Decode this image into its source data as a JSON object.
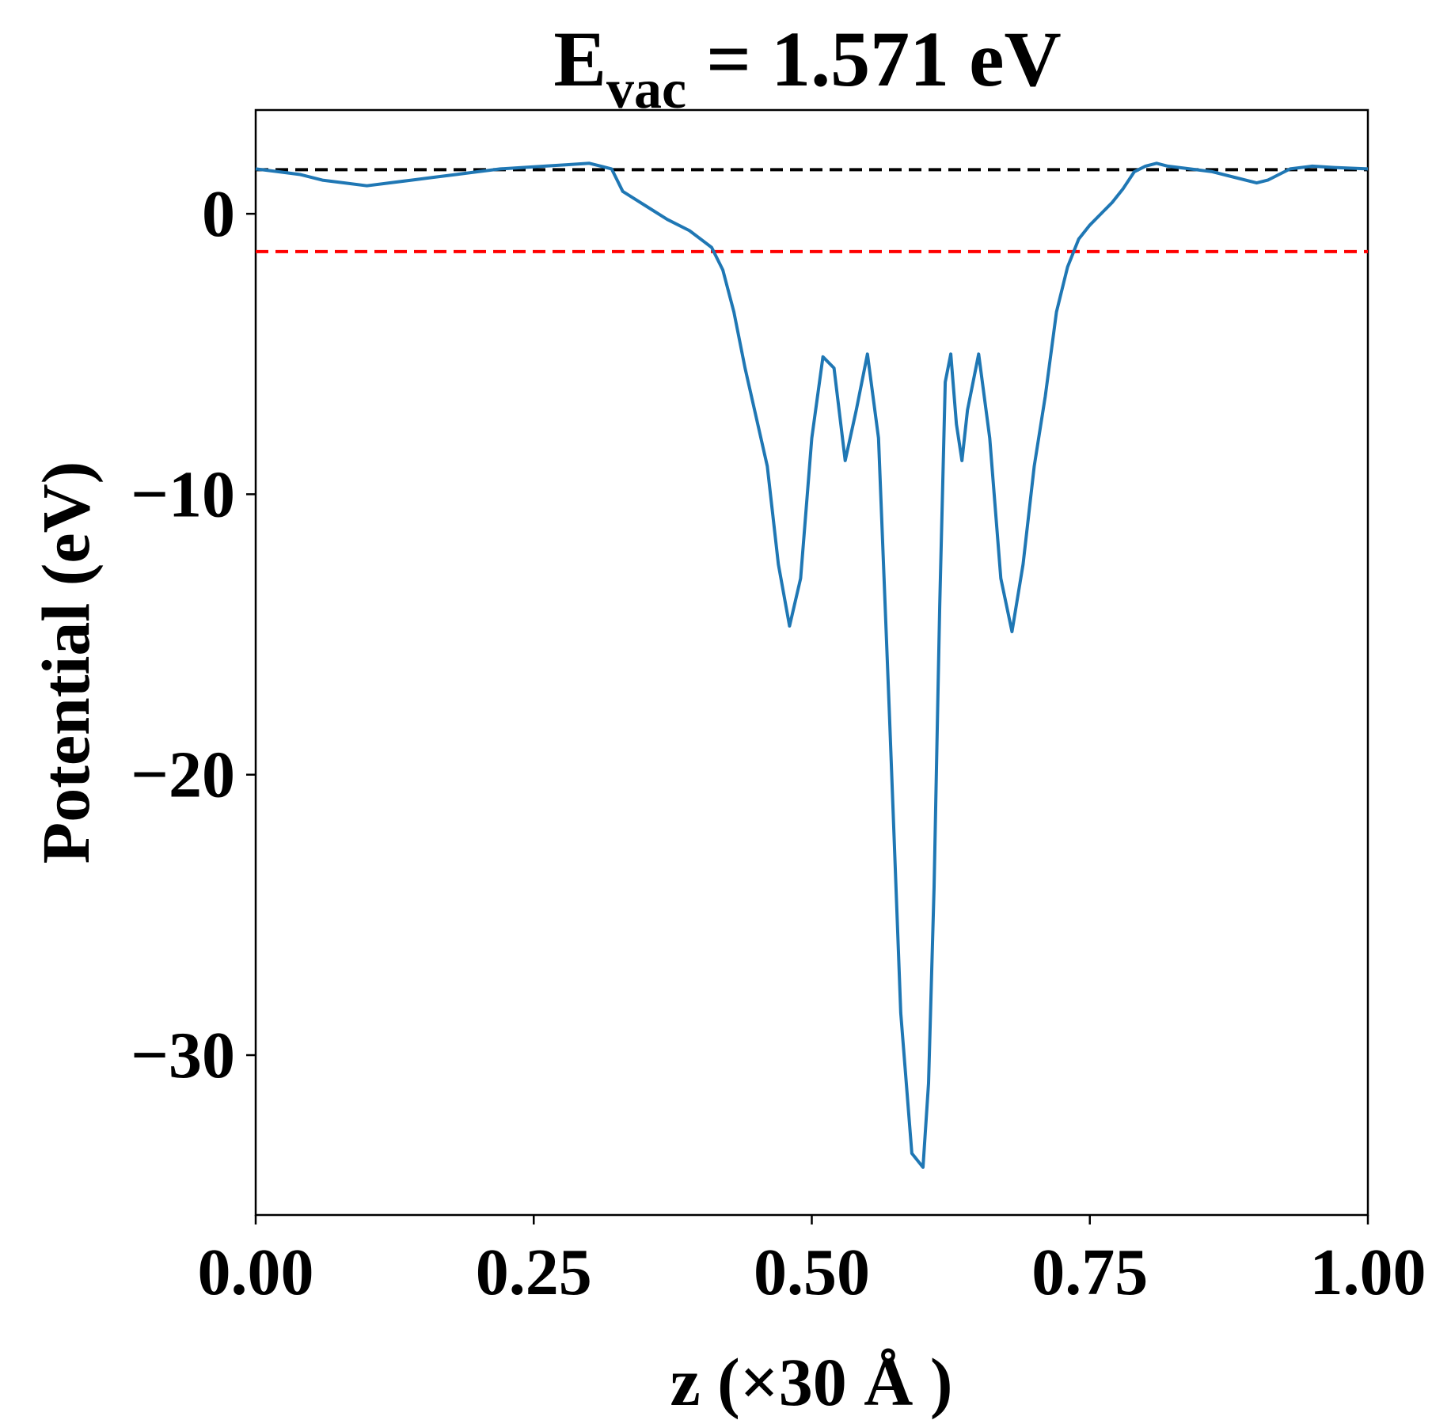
{
  "chart_data": {
    "type": "line",
    "title": {
      "main": "E",
      "subscript": "vac",
      "rest": " = 1.571 eV"
    },
    "xlabel": "z (×30 Å )",
    "ylabel": "Potential (eV)",
    "xlim": [
      0.0,
      1.0
    ],
    "ylim": [
      -35.7,
      3.7
    ],
    "xticks": [
      0.0,
      0.25,
      0.5,
      0.75,
      1.0
    ],
    "xtick_labels": [
      "0.00",
      "0.25",
      "0.50",
      "0.75",
      "1.00"
    ],
    "yticks": [
      0,
      -10,
      -20,
      -30
    ],
    "ytick_labels": [
      "0",
      "−10",
      "−20",
      "−30"
    ],
    "grid": false,
    "legend": false,
    "hlines": [
      {
        "name": "vacuum-level",
        "y": 1.571,
        "color": "#000000",
        "style": "dashed"
      },
      {
        "name": "fermi-level",
        "y": -1.35,
        "color": "#ff0000",
        "style": "dashed"
      }
    ],
    "series": [
      {
        "color": "#1f77b4",
        "x": [
          0.0,
          0.02,
          0.04,
          0.06,
          0.08,
          0.1,
          0.12,
          0.14,
          0.16,
          0.18,
          0.2,
          0.22,
          0.24,
          0.26,
          0.28,
          0.3,
          0.32,
          0.33,
          0.35,
          0.37,
          0.39,
          0.41,
          0.42,
          0.43,
          0.44,
          0.46,
          0.47,
          0.48,
          0.49,
          0.5,
          0.51,
          0.52,
          0.53,
          0.54,
          0.55,
          0.56,
          0.57,
          0.58,
          0.59,
          0.6,
          0.605,
          0.61,
          0.615,
          0.62,
          0.625,
          0.63,
          0.635,
          0.64,
          0.65,
          0.66,
          0.67,
          0.68,
          0.69,
          0.7,
          0.71,
          0.72,
          0.73,
          0.74,
          0.75,
          0.76,
          0.77,
          0.78,
          0.79,
          0.8,
          0.81,
          0.82,
          0.84,
          0.86,
          0.88,
          0.9,
          0.91,
          0.92,
          0.93,
          0.95,
          0.97,
          1.0
        ],
        "y": [
          1.6,
          1.5,
          1.4,
          1.2,
          1.1,
          1.0,
          1.1,
          1.2,
          1.3,
          1.4,
          1.5,
          1.6,
          1.65,
          1.7,
          1.75,
          1.8,
          1.6,
          0.8,
          0.3,
          -0.2,
          -0.6,
          -1.2,
          -2.0,
          -3.5,
          -5.5,
          -9.0,
          -12.5,
          -14.7,
          -13.0,
          -8.0,
          -5.1,
          -5.5,
          -8.8,
          -7.0,
          -5.0,
          -8.0,
          -18.0,
          -28.5,
          -33.5,
          -34.0,
          -31.0,
          -24.0,
          -14.0,
          -6.0,
          -5.0,
          -7.5,
          -8.8,
          -7.0,
          -5.0,
          -8.0,
          -13.0,
          -14.9,
          -12.5,
          -9.0,
          -6.5,
          -3.5,
          -1.9,
          -0.9,
          -0.4,
          0.0,
          0.4,
          0.9,
          1.5,
          1.7,
          1.8,
          1.7,
          1.6,
          1.5,
          1.3,
          1.1,
          1.2,
          1.4,
          1.6,
          1.7,
          1.65,
          1.6
        ]
      }
    ]
  }
}
